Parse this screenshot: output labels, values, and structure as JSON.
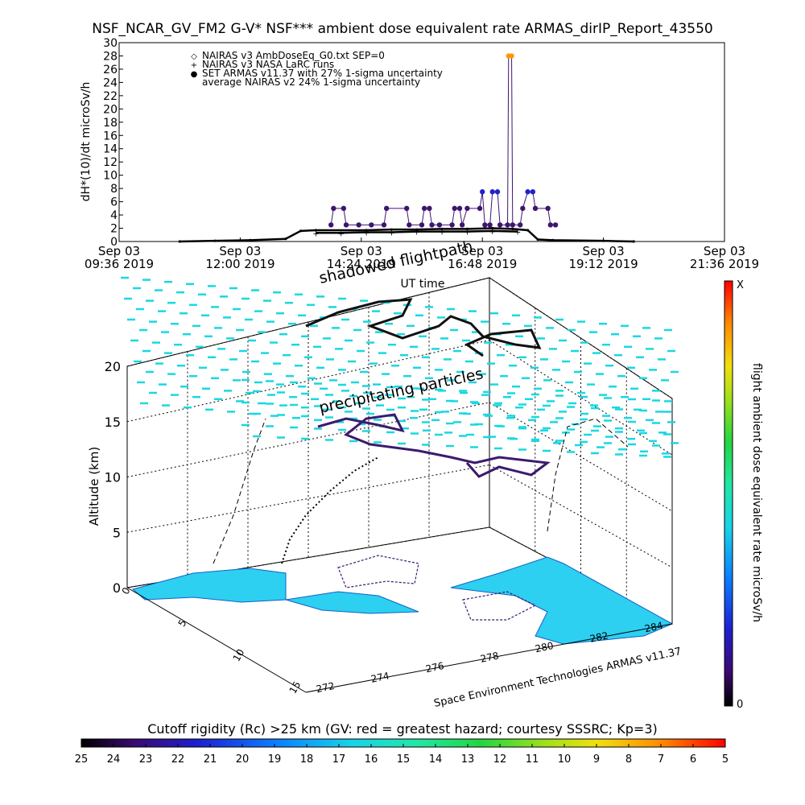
{
  "chart_data": [
    {
      "type": "line",
      "title": "NSF_NCAR_GV_FM2 G-V* NSF*** ambient dose equivalent rate ARMAS_dirIP_Report_43550",
      "ylabel": "dH*(10)/dt microSv/h",
      "xlabel": "UT time",
      "ylim": [
        0,
        30
      ],
      "y_ticks": [
        "0",
        "2",
        "4",
        "6",
        "8",
        "10",
        "12",
        "14",
        "16",
        "18",
        "20",
        "22",
        "24",
        "26",
        "28",
        "30"
      ],
      "x_ticks": [
        {
          "line1": "Sep 03",
          "line2": "09:36 2019"
        },
        {
          "line1": "Sep 03",
          "line2": "12:00 2019"
        },
        {
          "line1": "Sep 03",
          "line2": "14:24 2019"
        },
        {
          "line1": "Sep 03",
          "line2": "16:48 2019"
        },
        {
          "line1": "Sep 03",
          "line2": "19:12 2019"
        },
        {
          "line1": "Sep 03",
          "line2": "21:36 2019"
        }
      ],
      "x_range_hours": [
        9.6,
        21.6
      ],
      "legend": [
        {
          "symbol": "◇",
          "label": "NAIRAS v3 AmbDoseEq_G0.txt SEP=0",
          "color": "#000000"
        },
        {
          "symbol": "+",
          "label": "NAIRAS v3 NASA LaRC runs",
          "color": "#000000"
        },
        {
          "symbol": "●",
          "label": "SET ARMAS v11.37 with 27% 1-sigma uncertainty",
          "color": "#2222cc"
        },
        {
          "symbol": "",
          "label": "average NAIRAS v2 24% 1-sigma uncertainty",
          "color": "#000000"
        }
      ],
      "series": [
        {
          "name": "NAIRAS v3 AmbDoseEq_G0.txt SEP=0",
          "color": "#000000",
          "points": [
            [
              10.8,
              0.0
            ],
            [
              11.5,
              0.1
            ],
            [
              12.2,
              0.2
            ],
            [
              12.9,
              0.4
            ],
            [
              13.2,
              1.6
            ],
            [
              13.5,
              1.7
            ],
            [
              14.5,
              1.7
            ],
            [
              15.0,
              1.8
            ],
            [
              15.5,
              1.8
            ],
            [
              16.0,
              1.9
            ],
            [
              16.5,
              1.9
            ],
            [
              17.0,
              2.0
            ],
            [
              17.4,
              1.9
            ],
            [
              17.7,
              1.7
            ],
            [
              17.9,
              0.3
            ],
            [
              18.2,
              0.2
            ],
            [
              19.2,
              0.1
            ],
            [
              19.8,
              0.0
            ]
          ]
        },
        {
          "name": "NAIRAS v3 NASA LaRC runs",
          "color": "#000000",
          "points": [
            [
              13.5,
              1.3
            ],
            [
              14.0,
              1.3
            ],
            [
              14.5,
              1.4
            ],
            [
              15.0,
              1.4
            ],
            [
              15.5,
              1.5
            ],
            [
              16.0,
              1.5
            ],
            [
              16.5,
              1.5
            ],
            [
              17.0,
              1.6
            ],
            [
              17.5,
              1.5
            ]
          ]
        },
        {
          "name": "SET ARMAS v11.37 with 27% 1-sigma uncertainty",
          "color": "#3d1470",
          "points": [
            [
              13.8,
              2.5
            ],
            [
              13.85,
              5.0
            ],
            [
              14.05,
              5.0
            ],
            [
              14.1,
              2.5
            ],
            [
              14.35,
              2.5
            ],
            [
              14.6,
              2.5
            ],
            [
              14.85,
              2.5
            ],
            [
              14.9,
              5.0
            ],
            [
              15.3,
              5.0
            ],
            [
              15.35,
              2.5
            ],
            [
              15.6,
              2.5
            ],
            [
              15.65,
              5.0
            ],
            [
              15.75,
              5.0
            ],
            [
              15.8,
              2.5
            ],
            [
              15.95,
              2.5
            ],
            [
              16.2,
              2.5
            ],
            [
              16.25,
              5.0
            ],
            [
              16.35,
              5.0
            ],
            [
              16.4,
              2.5
            ],
            [
              16.5,
              5.0
            ],
            [
              16.75,
              5.0
            ],
            [
              16.8,
              7.5
            ],
            [
              16.85,
              2.5
            ],
            [
              16.95,
              2.5
            ],
            [
              17.0,
              7.5
            ],
            [
              17.1,
              7.5
            ],
            [
              17.15,
              2.5
            ],
            [
              17.3,
              2.5
            ],
            [
              17.32,
              28.0
            ],
            [
              17.38,
              28.0
            ],
            [
              17.4,
              2.5
            ],
            [
              17.55,
              2.5
            ],
            [
              17.6,
              5.0
            ],
            [
              17.7,
              7.5
            ],
            [
              17.8,
              7.5
            ],
            [
              17.85,
              5.0
            ],
            [
              18.1,
              5.0
            ],
            [
              18.15,
              2.5
            ],
            [
              18.25,
              2.5
            ]
          ]
        }
      ]
    },
    {
      "type": "scatter",
      "ylabel": "Altitude (km)",
      "z_ticks": [
        "0",
        "5",
        "10",
        "15",
        "20"
      ],
      "lat_ticks": [
        "0",
        "5",
        "10",
        "15"
      ],
      "lon_ticks": [
        "272",
        "274",
        "276",
        "278",
        "280",
        "282",
        "284"
      ],
      "annotations": [
        "shadowed flightpath",
        "precipitating particles"
      ],
      "credit": "Space Environment Technologies ARMAS v11.37",
      "colorbar": {
        "label": "flight ambient dose equivalent rate microSv/h",
        "top_label": "X",
        "bottom_label": "0"
      }
    },
    {
      "type": "heatmap",
      "title": "Cutoff rigidity (Rc) >25 km (GV: red = greatest hazard; courtesy SSSRC; Kp=3)",
      "tick_labels": [
        "25",
        "24",
        "23",
        "22",
        "21",
        "20",
        "19",
        "18",
        "17",
        "16",
        "15",
        "14",
        "13",
        "12",
        "11",
        "10",
        "9",
        "8",
        "7",
        "6",
        "5"
      ]
    }
  ]
}
